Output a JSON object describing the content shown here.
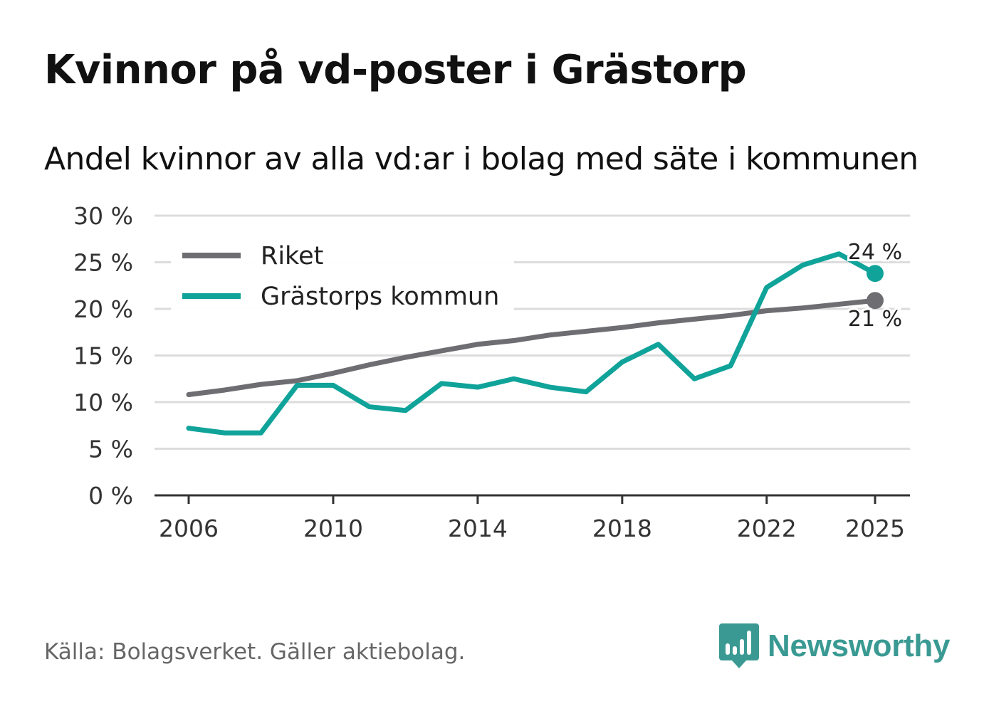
{
  "header": {
    "title": "Kvinnor på vd-poster i Grästorp",
    "subtitle": "Andel kvinnor av alla vd:ar i bolag med säte i kommunen"
  },
  "footer": {
    "source": "Källa: Bolagsverket. Gäller aktiebolag.",
    "brand": "Newsworthy"
  },
  "colors": {
    "riket": "#6e6d72",
    "kommun": "#10a39a",
    "brand": "#3a9a93"
  },
  "chart_data": {
    "type": "line",
    "title": "Kvinnor på vd-poster i Grästorp",
    "subtitle": "Andel kvinnor av alla vd:ar i bolag med säte i kommunen",
    "xlabel": "",
    "ylabel": "",
    "x": [
      2006,
      2007,
      2008,
      2009,
      2010,
      2011,
      2012,
      2013,
      2014,
      2015,
      2016,
      2017,
      2018,
      2019,
      2020,
      2021,
      2022,
      2023,
      2024,
      2025
    ],
    "x_ticks": [
      "2006",
      "2010",
      "2014",
      "2018",
      "2022",
      "2025"
    ],
    "y_ticks": [
      "0 %",
      "5 %",
      "10 %",
      "15 %",
      "20 %",
      "25 %",
      "30 %"
    ],
    "ylim": [
      0,
      30
    ],
    "grid": true,
    "legend_position": "top-left",
    "series": [
      {
        "name": "Riket",
        "values": [
          10.8,
          11.3,
          11.9,
          12.3,
          13.1,
          14.0,
          14.8,
          15.5,
          16.2,
          16.6,
          17.2,
          17.6,
          18.0,
          18.5,
          18.9,
          19.3,
          19.8,
          20.1,
          20.5,
          20.9
        ],
        "end_label": "21 %"
      },
      {
        "name": "Grästorps kommun",
        "values": [
          7.2,
          6.7,
          6.7,
          11.8,
          11.8,
          9.5,
          9.1,
          12.0,
          11.6,
          12.5,
          11.6,
          11.1,
          14.3,
          16.2,
          12.5,
          13.9,
          22.3,
          24.7,
          25.9,
          23.8
        ],
        "end_label": "24 %"
      }
    ]
  }
}
